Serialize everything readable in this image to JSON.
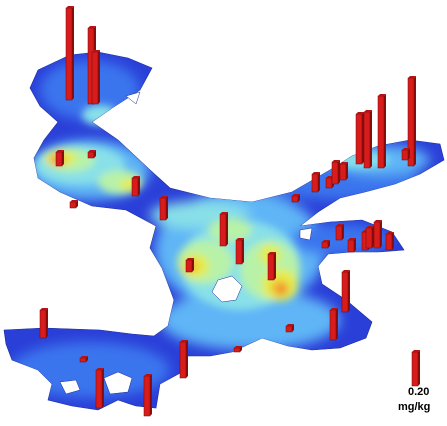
{
  "legend": {
    "value": "0.20",
    "unit": "mg/kg"
  },
  "colors": {
    "bar": "#d81c1c",
    "bar_side": "#8e0c0c",
    "surface_scale": [
      "#2a3fd8",
      "#3b74ee",
      "#5fb5f6",
      "#88e0e8",
      "#b8f2a8",
      "#e6ec4a",
      "#f2b437",
      "#ef6a22",
      "#e02a1a"
    ]
  }
}
